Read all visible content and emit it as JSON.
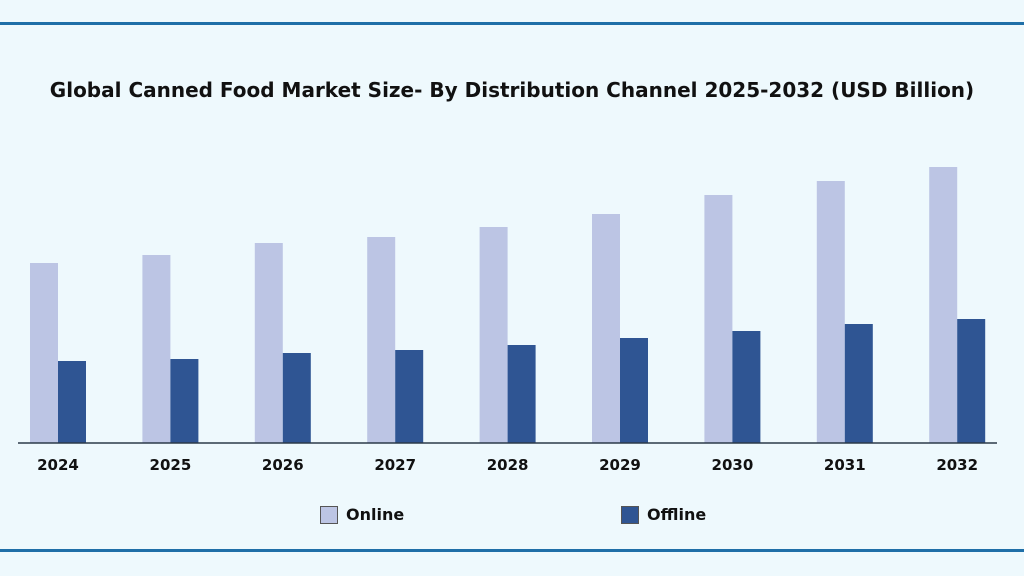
{
  "chart_data": {
    "type": "bar",
    "title": "Global Canned Food Market Size- By Distribution Channel 2025-2032 (USD Billion)",
    "categories": [
      "2024",
      "2025",
      "2026",
      "2027",
      "2028",
      "2029",
      "2030",
      "2031",
      "2032"
    ],
    "series": [
      {
        "name": "Online",
        "color": "#bcc5e4",
        "values": [
          180,
          188,
          200,
          206,
          216,
          229,
          248,
          262,
          276
        ]
      },
      {
        "name": "Offline",
        "color": "#2f5593",
        "values": [
          82,
          84,
          90,
          93,
          98,
          105,
          112,
          119,
          124
        ]
      }
    ],
    "ylim": [
      0,
      280
    ],
    "grid": false,
    "y_axis_shown": false,
    "legend_placement": "bottom"
  }
}
